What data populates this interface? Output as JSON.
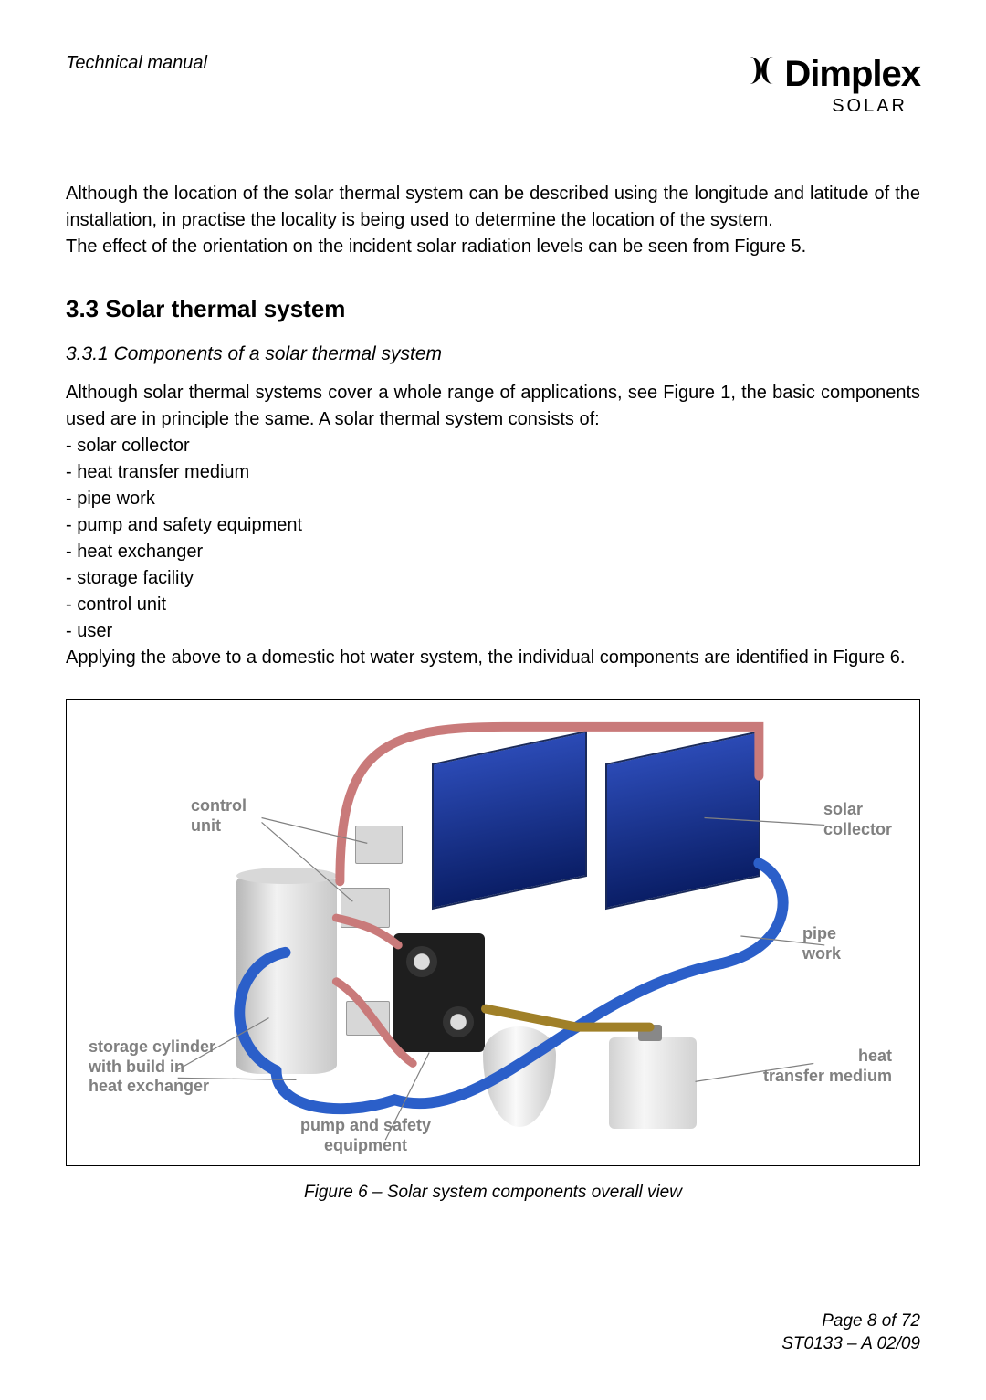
{
  "header": {
    "title": "Technical manual",
    "brand": "Dimplex",
    "brand_sub": "SOLAR"
  },
  "para1": "Although the location of the solar thermal system can be described using the longitude and latitude of the installation, in practise the locality is being used to determine the location of the system.",
  "para2": "The effect of the orientation on the incident solar radiation levels can be seen from Figure 5.",
  "section": {
    "number": "3.3",
    "title": "Solar thermal system"
  },
  "subsection": {
    "number": "3.3.1",
    "title": "Components of a solar thermal system"
  },
  "para3": "Although solar thermal systems cover a whole range of applications, see Figure 1, the basic components used are in principle the same. A solar thermal system consists of:",
  "components": [
    "solar collector",
    "heat transfer medium",
    "pipe work",
    "pump and safety equipment",
    "heat exchanger",
    "storage facility",
    "control unit",
    "user"
  ],
  "para4": "Applying the above to a domestic hot water system, the individual components are identified in Figure 6.",
  "figure": {
    "caption": "Figure 6 – Solar system components overall view",
    "labels": {
      "control_unit": "control\nunit",
      "solar_collector": "solar\ncollector",
      "pipe_work": "pipe\nwork",
      "heat_transfer_medium": "heat\ntransfer medium",
      "pump_safety": "pump and safety\nequipment",
      "storage": "storage cylinder\nwith build in\nheat exchanger"
    },
    "colors": {
      "hot_pipe": "#c97a7a",
      "cold_pipe": "#2b5fc9",
      "brass_pipe": "#a08028",
      "panel_fill": "#16369e",
      "label_text": "#808080",
      "border": "#000000"
    }
  },
  "footer": {
    "page": "Page 8 of 72",
    "doc": "ST0133 – A 02/09"
  }
}
